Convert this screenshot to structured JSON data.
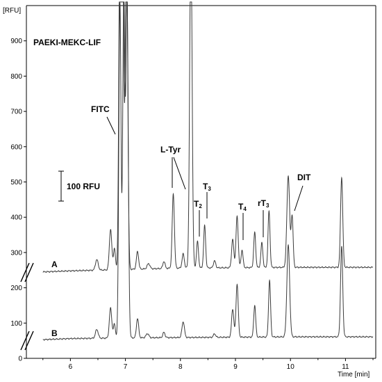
{
  "chart_data": {
    "type": "line",
    "title": "PAEKI-MEKC-LIF",
    "xlabel": "Time [min]",
    "ylabel": "[RFU]",
    "xlim": [
      5.2,
      11.55
    ],
    "ylim": [
      0,
      1000
    ],
    "y_ticks": [
      0,
      100,
      200,
      300,
      400,
      500,
      600,
      700,
      800,
      900
    ],
    "x_ticks": [
      6,
      7,
      8,
      9,
      10,
      11
    ],
    "grid": false,
    "scale_bar": {
      "label": "100 RFU",
      "value": 100
    },
    "series": [
      {
        "name": "A",
        "baseline": [
          [
            5.5,
            245
          ],
          [
            6.0,
            248
          ],
          [
            7.0,
            252
          ],
          [
            8.0,
            256
          ],
          [
            9.0,
            257
          ],
          [
            10.0,
            258
          ],
          [
            11.0,
            258
          ],
          [
            11.5,
            258
          ]
        ],
        "peaks": [
          {
            "x": 6.48,
            "h": 30,
            "w": 0.025
          },
          {
            "x": 6.73,
            "h": 115,
            "w": 0.022
          },
          {
            "x": 6.8,
            "h": 60,
            "w": 0.018
          },
          {
            "x": 6.9,
            "h": 950,
            "w": 0.02
          },
          {
            "x": 6.95,
            "h": 950,
            "w": 0.02
          },
          {
            "x": 7.02,
            "h": 950,
            "w": 0.022
          },
          {
            "x": 7.22,
            "h": 50,
            "w": 0.02
          },
          {
            "x": 7.42,
            "h": 15,
            "w": 0.025
          },
          {
            "x": 7.7,
            "h": 20,
            "w": 0.02
          },
          {
            "x": 7.87,
            "h": 210,
            "w": 0.02
          },
          {
            "x": 8.05,
            "h": 40,
            "w": 0.02
          },
          {
            "x": 8.19,
            "h": 950,
            "w": 0.022
          },
          {
            "x": 8.31,
            "h": 75,
            "w": 0.018
          },
          {
            "x": 8.44,
            "h": 120,
            "w": 0.018
          },
          {
            "x": 8.62,
            "h": 20,
            "w": 0.02
          },
          {
            "x": 8.95,
            "h": 80,
            "w": 0.02
          },
          {
            "x": 9.03,
            "h": 145,
            "w": 0.02
          },
          {
            "x": 9.12,
            "h": 50,
            "w": 0.018
          },
          {
            "x": 9.35,
            "h": 100,
            "w": 0.018
          },
          {
            "x": 9.48,
            "h": 70,
            "w": 0.018
          },
          {
            "x": 9.61,
            "h": 160,
            "w": 0.018
          },
          {
            "x": 9.96,
            "h": 260,
            "w": 0.025
          },
          {
            "x": 10.03,
            "h": 145,
            "w": 0.018
          },
          {
            "x": 10.93,
            "h": 255,
            "w": 0.02
          }
        ]
      },
      {
        "name": "B",
        "baseline": [
          [
            5.5,
            53
          ],
          [
            6.0,
            56
          ],
          [
            7.0,
            58
          ],
          [
            8.0,
            59
          ],
          [
            9.0,
            60
          ],
          [
            10.0,
            61
          ],
          [
            11.0,
            61
          ],
          [
            11.5,
            61
          ]
        ],
        "peaks": [
          {
            "x": 6.48,
            "h": 25,
            "w": 0.025
          },
          {
            "x": 6.73,
            "h": 85,
            "w": 0.022
          },
          {
            "x": 6.8,
            "h": 40,
            "w": 0.018
          },
          {
            "x": 6.9,
            "h": 950,
            "w": 0.02
          },
          {
            "x": 6.97,
            "h": 950,
            "w": 0.02
          },
          {
            "x": 7.03,
            "h": 950,
            "w": 0.022
          },
          {
            "x": 7.22,
            "h": 55,
            "w": 0.02
          },
          {
            "x": 7.4,
            "h": 12,
            "w": 0.025
          },
          {
            "x": 7.7,
            "h": 15,
            "w": 0.02
          },
          {
            "x": 8.05,
            "h": 45,
            "w": 0.022
          },
          {
            "x": 8.62,
            "h": 10,
            "w": 0.02
          },
          {
            "x": 8.95,
            "h": 80,
            "w": 0.02
          },
          {
            "x": 9.03,
            "h": 150,
            "w": 0.02
          },
          {
            "x": 9.35,
            "h": 90,
            "w": 0.018
          },
          {
            "x": 9.62,
            "h": 160,
            "w": 0.018
          },
          {
            "x": 9.96,
            "h": 260,
            "w": 0.025
          },
          {
            "x": 10.93,
            "h": 255,
            "w": 0.02
          }
        ]
      }
    ],
    "annotations": [
      {
        "label": "FITC",
        "sub": "",
        "target": [
          6.85,
          660
        ]
      },
      {
        "label": "L-Tyr",
        "sub": "",
        "target": [
          7.82,
          490
        ]
      },
      {
        "label": "L-Tyr",
        "sub": "",
        "target": [
          8.07,
          490
        ]
      },
      {
        "label": "T",
        "sub": "2",
        "target": [
          8.31,
          320
        ]
      },
      {
        "label": "T",
        "sub": "3",
        "target": [
          8.44,
          370
        ]
      },
      {
        "label": "T",
        "sub": "4",
        "target": [
          9.12,
          315
        ]
      },
      {
        "label": "rT",
        "sub": "3",
        "target": [
          9.48,
          320
        ]
      },
      {
        "label": "DIT",
        "sub": "",
        "target": [
          10.03,
          400
        ]
      }
    ]
  }
}
